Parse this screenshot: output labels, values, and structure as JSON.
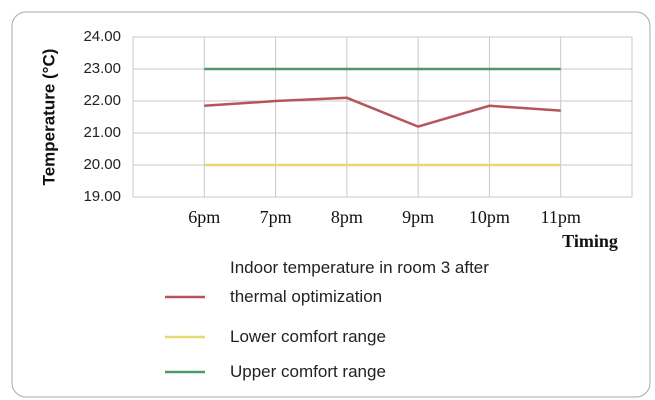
{
  "chart_data": {
    "type": "line",
    "y_label": "Temperature (°C)",
    "x_label": "Timing",
    "categories": [
      "6pm",
      "7pm",
      "8pm",
      "9pm",
      "10pm",
      "11pm"
    ],
    "series": [
      {
        "name": "Indoor temperature in room 3 after thermal optimization",
        "color": "#b5575a",
        "values": [
          21.85,
          22.0,
          22.1,
          21.2,
          21.85,
          21.7
        ]
      },
      {
        "name": "Lower comfort range",
        "color": "#e8d870",
        "values": [
          20,
          20,
          20,
          20,
          20,
          20
        ]
      },
      {
        "name": "Upper comfort range",
        "color": "#4a9a6a",
        "values": [
          23,
          23,
          23,
          23,
          23,
          23
        ]
      }
    ],
    "ylim": [
      19,
      24
    ],
    "yticks": [
      {
        "value": 19,
        "label": "19.00"
      },
      {
        "value": 20,
        "label": "20.00"
      },
      {
        "value": 21,
        "label": "21.00"
      },
      {
        "value": 22,
        "label": "22.00"
      },
      {
        "value": 23,
        "label": "23.00"
      },
      {
        "value": 24,
        "label": "24.00"
      }
    ],
    "grid": true
  }
}
